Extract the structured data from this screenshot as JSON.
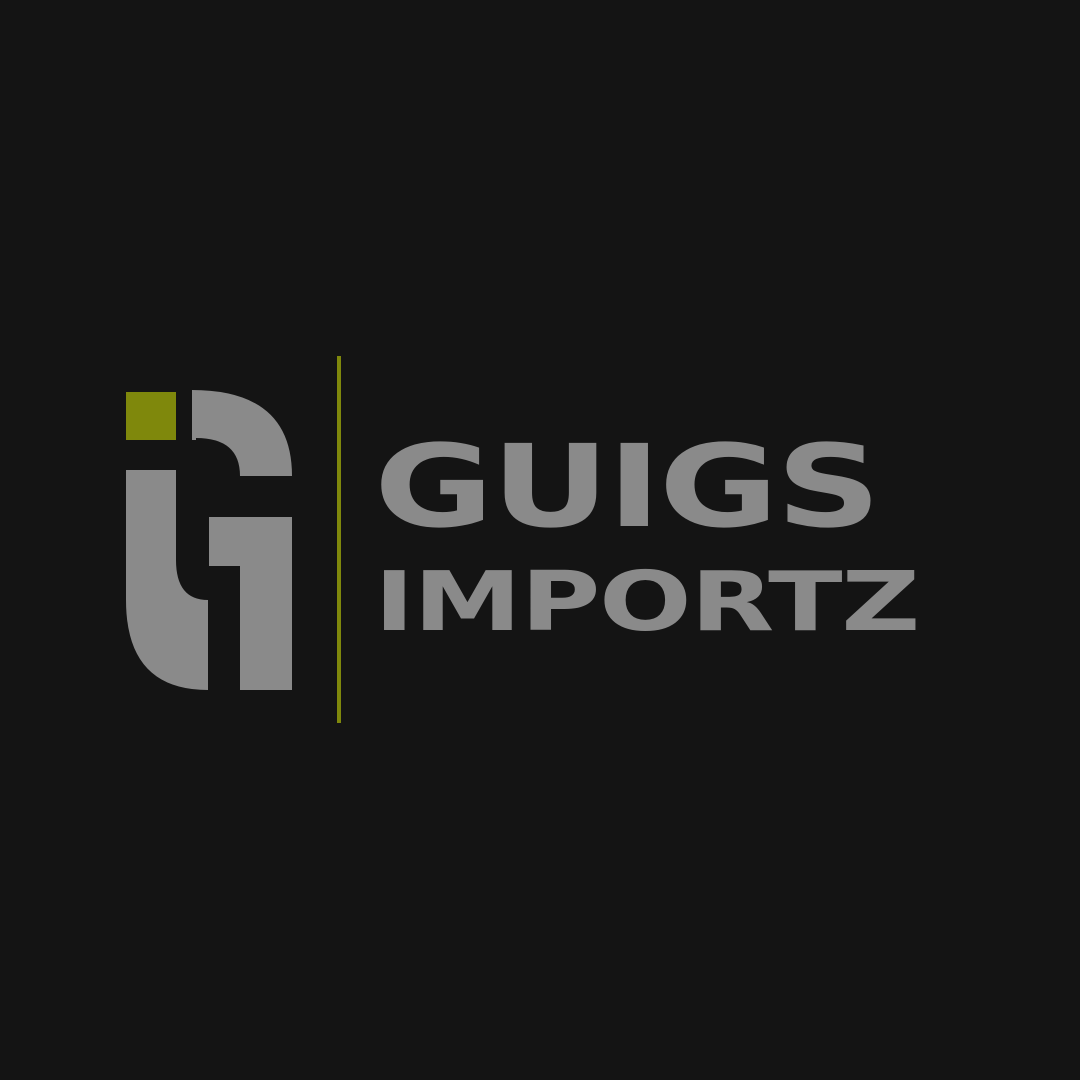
{
  "brand": {
    "line1": "GUIGS",
    "line2": "IMPORTZ"
  },
  "colors": {
    "background": "#141414",
    "text_gray": "#8a8a8a",
    "accent_olive": "#7f880c"
  },
  "logo": {
    "icon": "gi-monogram-icon"
  }
}
